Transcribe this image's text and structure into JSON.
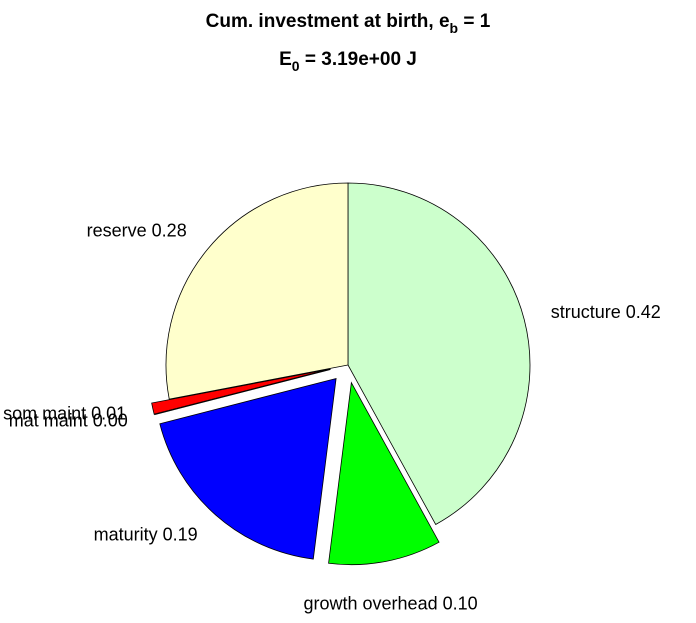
{
  "chart_data": {
    "type": "pie",
    "title": [
      "Cum. investment at birth, e",
      "b",
      " = 1"
    ],
    "subtitle": [
      "E",
      "0",
      " = 3.19e+00 J"
    ],
    "categories": [
      "structure",
      "growth overhead",
      "maturity",
      "mat maint",
      "som maint",
      "reserve"
    ],
    "values": [
      0.42,
      0.1,
      0.19,
      0.0,
      0.01,
      0.28
    ],
    "value_labels": [
      "0.42",
      "0.10",
      "0.19",
      "0.00",
      "0.01",
      "0.28"
    ],
    "colors": [
      "#ccffcc",
      "#00ff00",
      "#0000ff",
      "#800080",
      "#ff0000",
      "#ffffcc"
    ],
    "explode": [
      false,
      true,
      true,
      true,
      true,
      false
    ]
  }
}
